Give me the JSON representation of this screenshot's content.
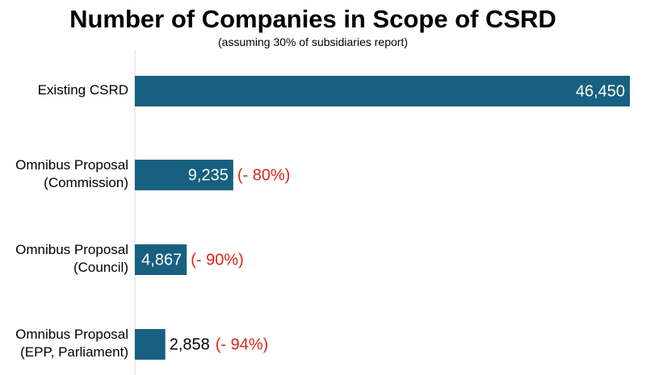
{
  "chart_data": {
    "type": "bar",
    "orientation": "horizontal",
    "title": "Number of Companies in Scope of CSRD",
    "subtitle": "(assuming 30% of subsidiaries report)",
    "categories": [
      [
        "Existing CSRD"
      ],
      [
        "Omnibus Proposal",
        "(Commission)"
      ],
      [
        "Omnibus Proposal",
        "(Council)"
      ],
      [
        "Omnibus Proposal",
        "(EPP, Parliament)"
      ]
    ],
    "values": [
      46450,
      9235,
      4867,
      2858
    ],
    "value_labels": [
      "46,450",
      "9,235",
      "4,867",
      "2,858"
    ],
    "change_labels": [
      "",
      "(- 80%)",
      "(- 90%)",
      "(- 94%)"
    ],
    "xlim": [
      0,
      46450
    ],
    "grid": false,
    "legend": "none",
    "colors": {
      "bar": "#17607f",
      "change": "#d9261c",
      "inside_label": "#ffffff",
      "outside_label": "#000000",
      "axis": "#d9d9d9"
    }
  }
}
